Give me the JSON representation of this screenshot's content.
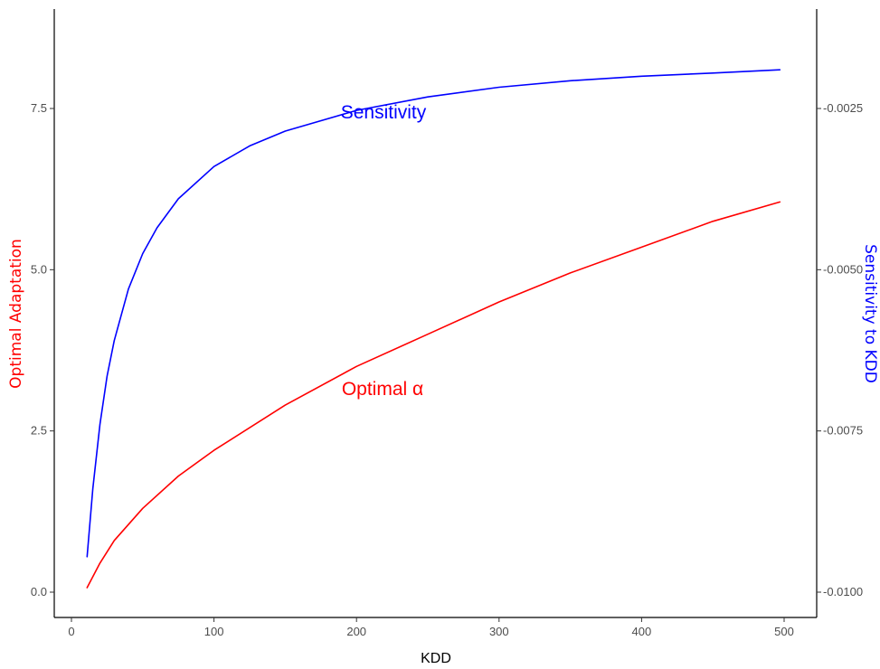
{
  "chart_data": {
    "type": "line",
    "xlabel": "KDD",
    "ylabel_left": "Optimal Adaptation",
    "ylabel_right": "Sensitivity to KDD",
    "xlim": [
      0,
      500
    ],
    "ylim_left": [
      0,
      8.75
    ],
    "ylim_right": [
      -0.0101,
      -0.0014
    ],
    "x_ticks": [
      "0",
      "100",
      "200",
      "300",
      "400",
      "500"
    ],
    "y_left_ticks": [
      "0.0",
      "2.5",
      "5.0",
      "7.5"
    ],
    "y_right_ticks": [
      "-0.0100",
      "-0.0075",
      "-0.0050",
      "-0.0025"
    ],
    "grid": false,
    "colors": {
      "sensitivity": "#0000ff",
      "optimal": "#ff0000"
    },
    "annotations": {
      "sensitivity": "Sensitivity",
      "optimal": "Optimal α"
    },
    "series": [
      {
        "axis": "right",
        "color": "#0000ff",
        "x": [
          11,
          15,
          20,
          25,
          30,
          40,
          50,
          60,
          75,
          100,
          125,
          150,
          200,
          250,
          300,
          350,
          400,
          450,
          497
        ],
        "y": [
          -0.00945,
          -0.0084,
          -0.0074,
          -0.00665,
          -0.0061,
          -0.0053,
          -0.00475,
          -0.00435,
          -0.0039,
          -0.0034,
          -0.00308,
          -0.00285,
          -0.00253,
          -0.00232,
          -0.00217,
          -0.00207,
          -0.002,
          -0.00195,
          -0.0019
        ]
      },
      {
        "axis": "left",
        "color": "#ff0000",
        "x": [
          11,
          20,
          30,
          50,
          75,
          100,
          150,
          200,
          250,
          300,
          350,
          400,
          450,
          497
        ],
        "y": [
          0.07,
          0.45,
          0.8,
          1.3,
          1.8,
          2.2,
          2.9,
          3.5,
          4.0,
          4.5,
          4.95,
          5.35,
          5.75,
          6.05
        ]
      }
    ]
  }
}
